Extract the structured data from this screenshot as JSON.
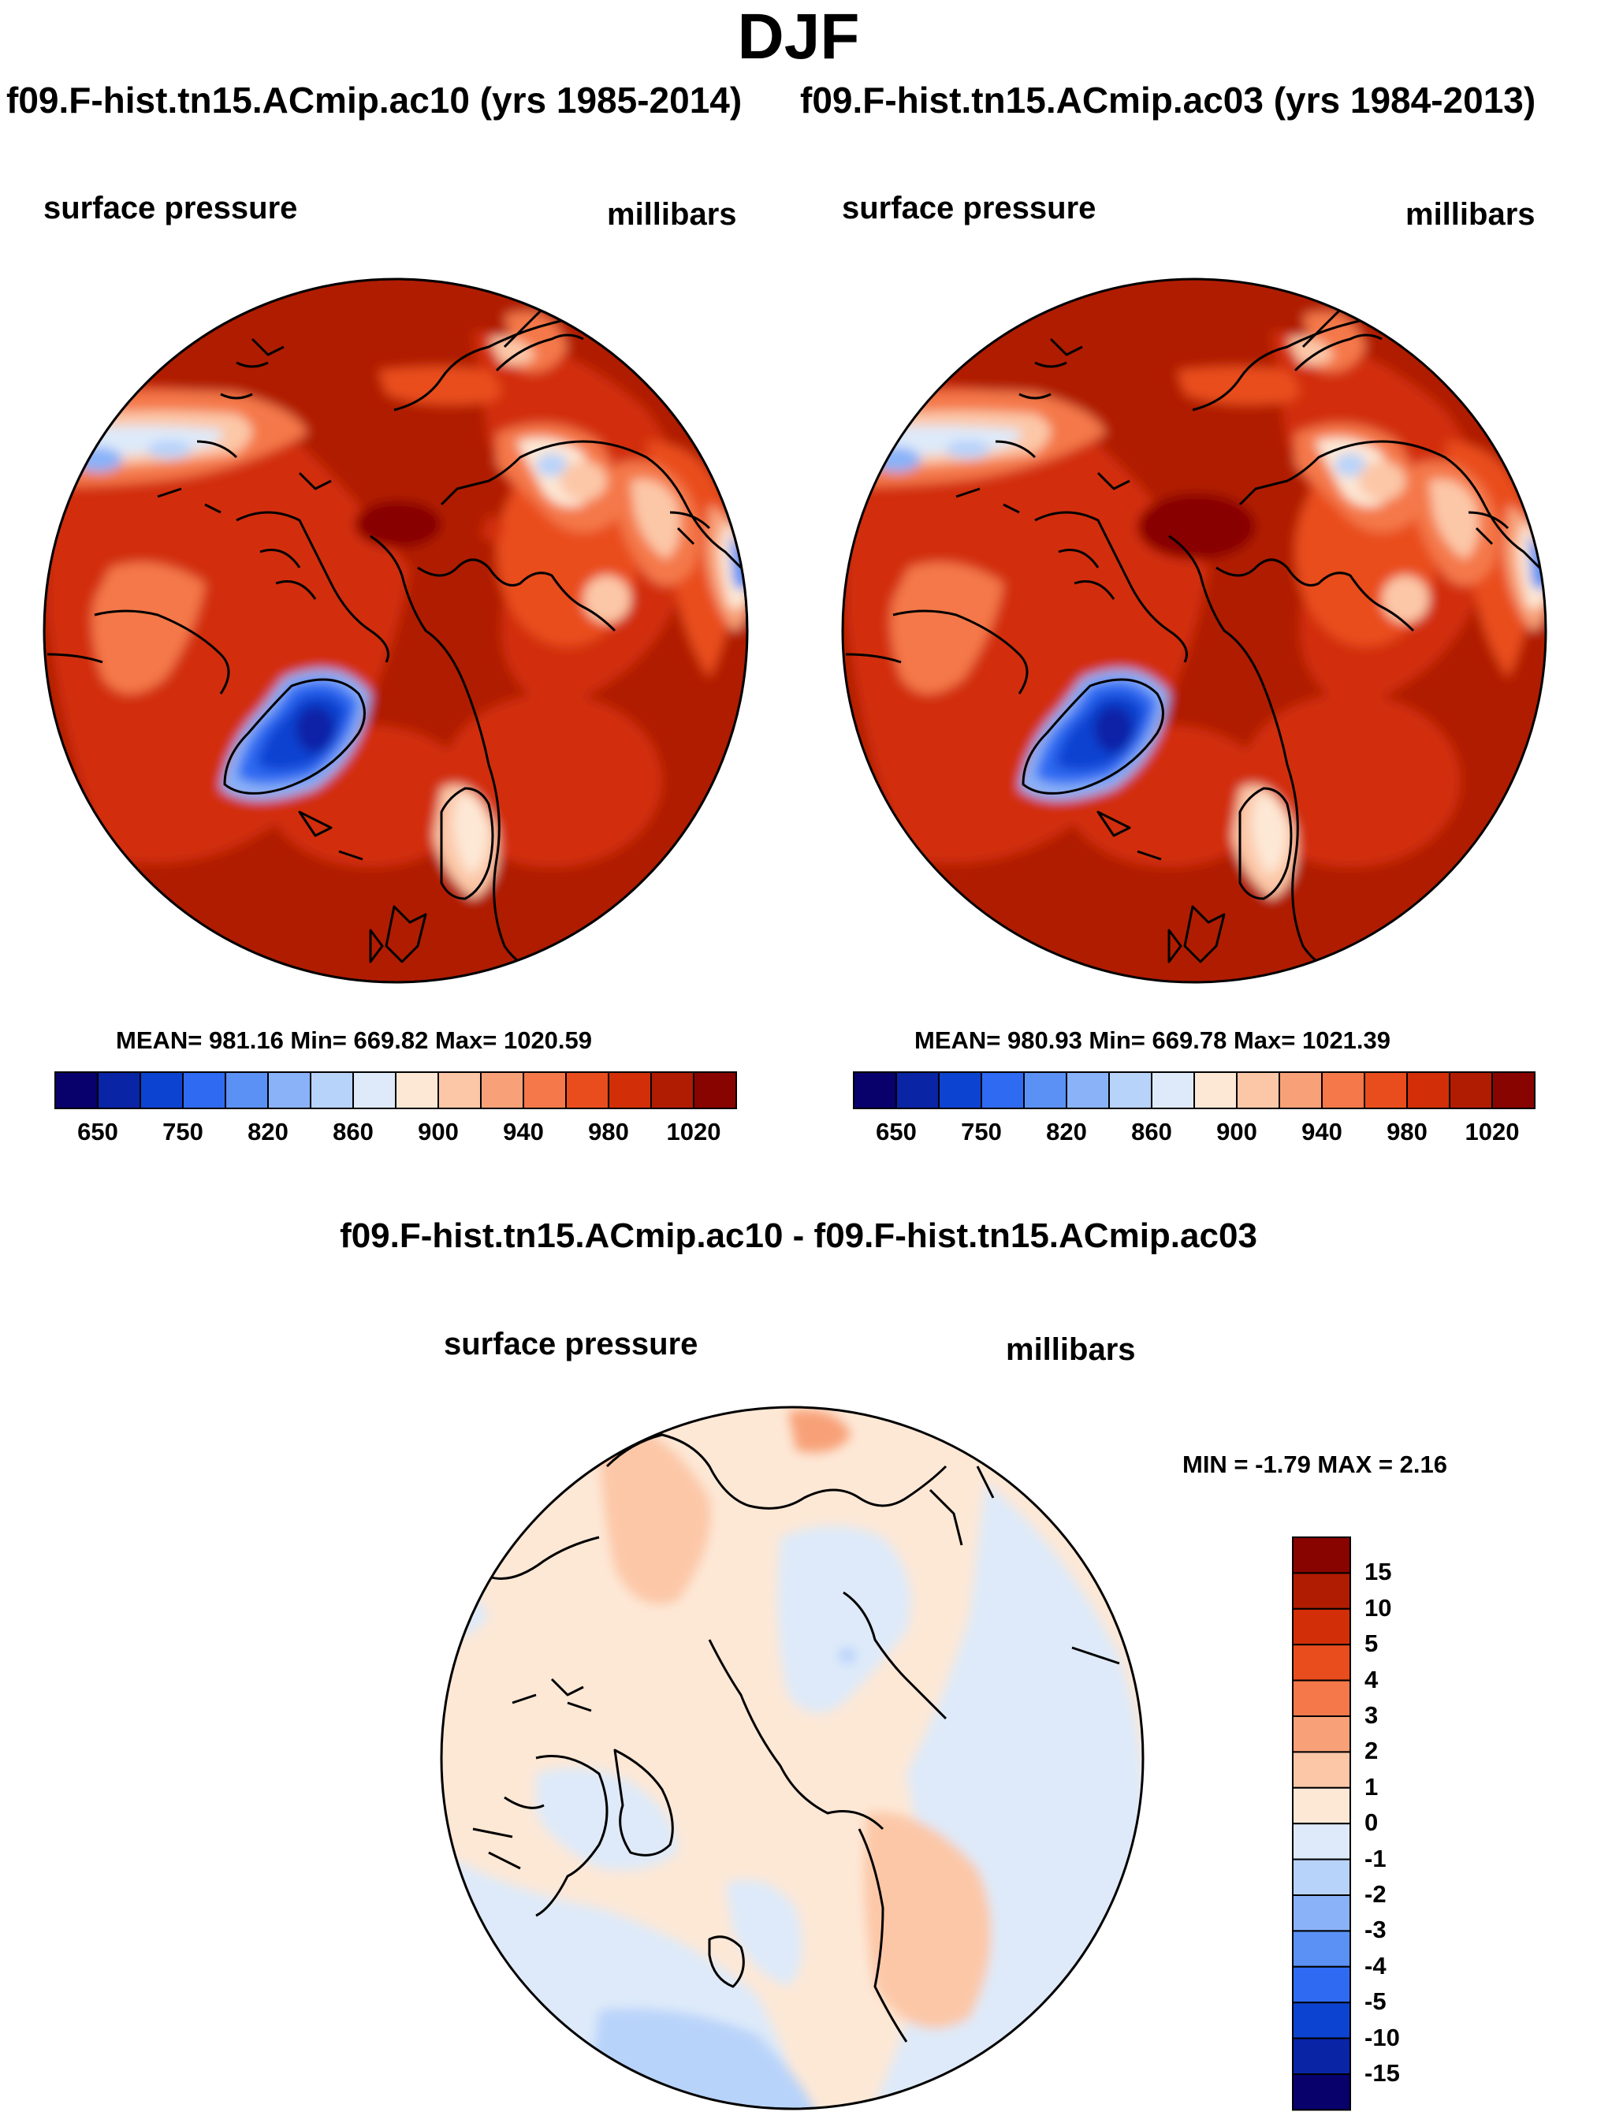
{
  "title": "DJF",
  "panels": [
    {
      "case": "f09.F-hist.tn15.ACmip.ac10",
      "years": "(yrs 1985-2014)",
      "variable": "surface pressure",
      "units": "millibars",
      "stats": "MEAN= 981.16  Min= 669.82  Max= 1020.59"
    },
    {
      "case": "f09.F-hist.tn15.ACmip.ac03",
      "years": "(yrs 1984-2013)",
      "variable": "surface pressure",
      "units": "millibars",
      "stats": "MEAN= 980.93  Min= 669.78  Max= 1021.39"
    }
  ],
  "header_left": "f09.F-hist.tn15.ACmip.ac10 (yrs 1985-2014)",
  "header_right": "f09.F-hist.tn15.ACmip.ac03 (yrs 1984-2013)",
  "diff": {
    "title": "f09.F-hist.tn15.ACmip.ac10 - f09.F-hist.tn15.ACmip.ac03",
    "variable": "surface pressure",
    "units": "millibars",
    "minmax": "MIN =  -1.79 MAX =   2.16"
  },
  "colorbar_main": {
    "colors": [
      "#08006b",
      "#0a24a6",
      "#0d43d1",
      "#2f6bf2",
      "#5b91f5",
      "#8ab2f8",
      "#b8d3fa",
      "#deeaf9",
      "#fde8d6",
      "#fcc7a7",
      "#f8a178",
      "#f4784a",
      "#e94d1d",
      "#d22e08",
      "#b01c02",
      "#880400"
    ],
    "tick_labels": [
      "650",
      "750",
      "820",
      "860",
      "900",
      "940",
      "980",
      "1020"
    ]
  },
  "colorbar_diff": {
    "colors": [
      "#880400",
      "#b01c02",
      "#d22e08",
      "#e94d1d",
      "#f4784a",
      "#f8a178",
      "#fcc7a7",
      "#fde8d6",
      "#deeaf9",
      "#b8d3fa",
      "#8ab2f8",
      "#5b91f5",
      "#2f6bf2",
      "#0d43d1",
      "#0a24a6",
      "#08006b"
    ],
    "tick_labels": [
      "15",
      "10",
      "5",
      "4",
      "3",
      "2",
      "1",
      "0",
      "-1",
      "-2",
      "-3",
      "-4",
      "-5",
      "-10",
      "-15"
    ]
  },
  "legend_symbols": [
    "map-left",
    "map-right",
    "map-diff"
  ]
}
